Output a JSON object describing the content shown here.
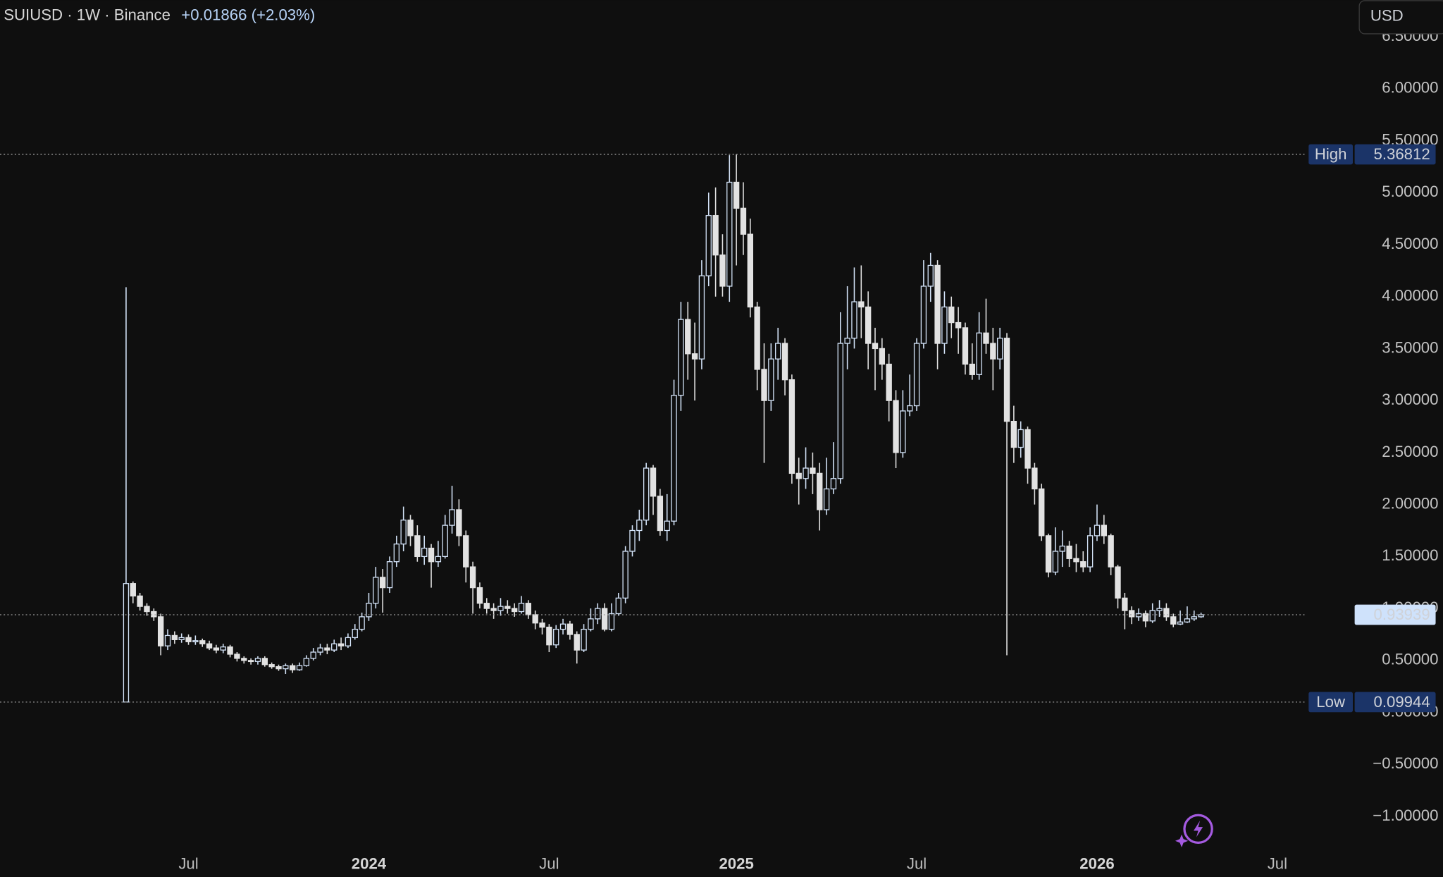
{
  "header": {
    "symbol": "SUIUSD · 1W · Binance",
    "change": "+0.01866 (+2.03%)",
    "currency": "USD"
  },
  "chart_data": {
    "type": "candlestick",
    "categories": [
      null,
      null,
      null,
      null,
      null,
      null,
      null,
      null,
      null,
      "Jul",
      null,
      null,
      null,
      null,
      null,
      null,
      null,
      null,
      null,
      null,
      null,
      null,
      null,
      null,
      null,
      null,
      null,
      null,
      null,
      null,
      null,
      null,
      null,
      null,
      null,
      "2024",
      null,
      null,
      null,
      null,
      null,
      null,
      null,
      null,
      null,
      null,
      null,
      null,
      null,
      null,
      null,
      null,
      null,
      null,
      null,
      null,
      null,
      null,
      null,
      null,
      null,
      "Jul",
      null,
      null,
      null,
      null,
      null,
      null,
      null,
      null,
      null,
      null,
      null,
      null,
      null,
      null,
      null,
      null,
      null,
      null,
      null,
      null,
      null,
      null,
      null,
      null,
      null,
      null,
      "2025",
      null,
      null,
      null,
      null,
      null,
      null,
      null,
      null,
      null,
      null,
      null,
      null,
      null,
      null,
      null,
      null,
      null,
      null,
      null,
      null,
      null,
      null,
      null,
      null,
      null,
      "Jul",
      null,
      null,
      null,
      null,
      null,
      null,
      null,
      null,
      null,
      null,
      null,
      null,
      null,
      null,
      null,
      null,
      null,
      null,
      null,
      null,
      null,
      null,
      null,
      null,
      null,
      "2026",
      null,
      null,
      null,
      null,
      null,
      null,
      null,
      null,
      null,
      null,
      null,
      null,
      null,
      null,
      null,
      null,
      null,
      null,
      null,
      null,
      null,
      null,
      null,
      null,
      null,
      "Jul"
    ],
    "open": [
      0.1,
      1.24,
      1.12,
      1.02,
      0.97,
      0.92,
      0.64,
      0.74,
      0.7,
      0.72,
      0.68,
      0.69,
      0.66,
      0.62,
      0.6,
      0.63,
      0.56,
      0.52,
      0.5,
      0.49,
      0.52,
      0.46,
      0.44,
      0.42,
      0.45,
      0.41,
      0.45,
      0.52,
      0.58,
      0.62,
      0.6,
      0.66,
      0.64,
      0.72,
      0.8,
      0.92,
      1.05,
      1.3,
      1.2,
      1.45,
      1.62,
      1.85,
      1.7,
      1.5,
      1.58,
      1.45,
      1.5,
      1.8,
      1.95,
      1.7,
      1.4,
      1.2,
      1.05,
      1.0,
      0.98,
      1.02,
      1.0,
      0.97,
      1.05,
      0.94,
      0.86,
      0.82,
      0.65,
      0.8,
      0.85,
      0.75,
      0.6,
      0.8,
      0.9,
      1.0,
      0.8,
      0.95,
      1.1,
      1.55,
      1.75,
      1.85,
      2.35,
      2.08,
      1.75,
      1.84,
      3.05,
      3.78,
      3.45,
      3.4,
      4.2,
      4.78,
      4.4,
      4.1,
      5.1,
      4.85,
      4.6,
      3.9,
      3.3,
      3.0,
      3.4,
      3.55,
      3.2,
      2.3,
      2.25,
      2.35,
      2.3,
      1.95,
      2.15,
      2.25,
      3.55,
      3.6,
      3.95,
      3.9,
      3.55,
      3.5,
      3.35,
      3.0,
      2.5,
      2.9,
      2.95,
      3.55,
      4.1,
      4.3,
      3.55,
      3.9,
      3.75,
      3.7,
      3.35,
      3.25,
      3.65,
      3.55,
      3.4,
      3.6,
      2.8,
      2.55,
      2.72,
      2.35,
      2.15,
      1.7,
      1.35,
      1.55,
      1.6,
      1.48,
      1.45,
      1.4,
      1.7,
      1.8,
      1.7,
      1.4,
      1.1,
      0.98,
      0.92,
      0.95,
      0.88,
      0.98,
      1.0,
      0.92,
      0.85,
      0.87,
      0.9,
      0.92,
      null,
      null,
      null,
      null,
      null,
      null,
      null,
      null,
      null,
      null,
      null
    ],
    "high": [
      4.09,
      1.26,
      1.15,
      1.05,
      1.0,
      0.95,
      0.8,
      0.78,
      0.76,
      0.75,
      0.74,
      0.71,
      0.69,
      0.65,
      0.66,
      0.65,
      0.58,
      0.54,
      0.52,
      0.54,
      0.54,
      0.48,
      0.46,
      0.47,
      0.47,
      0.48,
      0.55,
      0.62,
      0.66,
      0.66,
      0.7,
      0.72,
      0.76,
      0.85,
      0.96,
      1.15,
      1.4,
      1.38,
      1.5,
      1.7,
      1.98,
      1.9,
      1.8,
      1.7,
      1.62,
      1.65,
      1.9,
      2.18,
      2.05,
      1.75,
      1.45,
      1.25,
      1.1,
      1.05,
      1.1,
      1.08,
      1.05,
      1.12,
      1.08,
      0.98,
      0.9,
      0.85,
      0.84,
      0.9,
      0.88,
      0.78,
      0.85,
      1.0,
      1.05,
      1.05,
      1.05,
      1.15,
      1.6,
      1.8,
      1.95,
      2.4,
      2.38,
      2.15,
      2.1,
      3.2,
      3.95,
      3.95,
      3.75,
      4.35,
      5.0,
      5.05,
      4.6,
      5.36,
      5.36812,
      5.1,
      4.75,
      3.95,
      3.55,
      3.55,
      3.7,
      3.6,
      3.25,
      2.45,
      2.55,
      2.5,
      2.4,
      2.45,
      2.6,
      3.85,
      4.1,
      4.28,
      4.3,
      4.05,
      3.7,
      3.6,
      3.45,
      3.1,
      3.1,
      3.25,
      3.6,
      4.35,
      4.42,
      4.35,
      4.05,
      4.0,
      3.9,
      3.75,
      3.55,
      3.85,
      3.98,
      3.7,
      3.7,
      3.65,
      2.95,
      2.8,
      2.75,
      2.4,
      2.2,
      1.72,
      1.78,
      1.75,
      1.65,
      1.62,
      1.55,
      1.78,
      2.0,
      1.9,
      1.72,
      1.42,
      1.15,
      1.02,
      1.0,
      0.98,
      1.05,
      1.08,
      1.05,
      0.95,
      0.98,
      1.02,
      0.98,
      0.96,
      null,
      null,
      null,
      null,
      null,
      null,
      null,
      null,
      null,
      null,
      null
    ],
    "low": [
      0.09944,
      1.05,
      0.98,
      0.93,
      0.88,
      0.55,
      0.6,
      0.66,
      0.67,
      0.65,
      0.65,
      0.63,
      0.6,
      0.57,
      0.57,
      0.53,
      0.49,
      0.47,
      0.46,
      0.46,
      0.44,
      0.42,
      0.4,
      0.37,
      0.38,
      0.4,
      0.44,
      0.5,
      0.55,
      0.56,
      0.58,
      0.6,
      0.62,
      0.7,
      0.78,
      0.88,
      1.0,
      0.96,
      1.15,
      1.4,
      1.55,
      1.6,
      1.45,
      1.42,
      1.2,
      1.4,
      1.48,
      1.72,
      1.6,
      1.25,
      0.95,
      1.0,
      0.95,
      0.9,
      0.93,
      0.95,
      0.92,
      0.95,
      0.9,
      0.8,
      0.75,
      0.58,
      0.62,
      0.75,
      0.7,
      0.47,
      0.58,
      0.78,
      0.85,
      0.78,
      0.78,
      0.93,
      1.05,
      1.5,
      1.65,
      1.8,
      1.9,
      1.7,
      1.65,
      1.8,
      2.9,
      3.2,
      3.0,
      3.3,
      4.1,
      4.0,
      4.0,
      3.95,
      4.3,
      4.4,
      3.8,
      3.1,
      2.4,
      2.9,
      3.2,
      3.05,
      2.2,
      2.0,
      2.15,
      2.1,
      1.75,
      1.9,
      2.1,
      2.2,
      3.3,
      3.5,
      3.6,
      3.3,
      3.1,
      3.2,
      2.8,
      2.35,
      2.45,
      2.85,
      2.9,
      3.5,
      3.95,
      3.3,
      3.45,
      3.6,
      3.45,
      3.25,
      3.2,
      3.2,
      3.45,
      3.1,
      3.3,
      0.55,
      2.4,
      2.45,
      2.2,
      2.0,
      1.65,
      1.3,
      1.32,
      1.4,
      1.4,
      1.35,
      1.35,
      1.35,
      1.65,
      1.62,
      1.32,
      1.0,
      0.8,
      0.85,
      0.88,
      0.82,
      0.86,
      0.92,
      0.88,
      0.82,
      0.84,
      0.86,
      0.88,
      0.91,
      null,
      null,
      null,
      null,
      null,
      null,
      null,
      null,
      null,
      null,
      null
    ],
    "close": [
      1.24,
      1.12,
      1.02,
      0.97,
      0.92,
      0.64,
      0.74,
      0.7,
      0.72,
      0.68,
      0.69,
      0.66,
      0.62,
      0.6,
      0.63,
      0.56,
      0.52,
      0.5,
      0.49,
      0.52,
      0.46,
      0.44,
      0.42,
      0.45,
      0.41,
      0.45,
      0.52,
      0.58,
      0.62,
      0.6,
      0.66,
      0.64,
      0.72,
      0.8,
      0.92,
      1.05,
      1.3,
      1.2,
      1.45,
      1.62,
      1.85,
      1.7,
      1.5,
      1.58,
      1.45,
      1.5,
      1.8,
      1.95,
      1.7,
      1.4,
      1.2,
      1.05,
      1.0,
      0.98,
      1.02,
      1.0,
      0.97,
      1.05,
      0.94,
      0.86,
      0.82,
      0.65,
      0.8,
      0.85,
      0.75,
      0.6,
      0.8,
      0.9,
      1.0,
      0.8,
      0.95,
      1.1,
      1.55,
      1.75,
      1.85,
      2.35,
      2.08,
      1.75,
      1.84,
      3.05,
      3.78,
      3.45,
      3.4,
      4.2,
      4.78,
      4.4,
      4.1,
      5.1,
      4.85,
      4.6,
      3.9,
      3.3,
      3.0,
      3.4,
      3.55,
      3.2,
      2.3,
      2.25,
      2.35,
      2.3,
      1.95,
      2.15,
      2.25,
      3.55,
      3.6,
      3.95,
      3.9,
      3.55,
      3.5,
      3.35,
      3.0,
      2.5,
      2.9,
      2.95,
      3.55,
      4.1,
      4.3,
      3.55,
      3.9,
      3.75,
      3.7,
      3.35,
      3.25,
      3.65,
      3.55,
      3.4,
      3.6,
      2.8,
      2.55,
      2.72,
      2.35,
      2.15,
      1.7,
      1.35,
      1.55,
      1.6,
      1.48,
      1.45,
      1.4,
      1.7,
      1.8,
      1.7,
      1.4,
      1.1,
      0.98,
      0.92,
      0.95,
      0.88,
      0.98,
      1.0,
      0.92,
      0.85,
      0.87,
      0.9,
      0.92,
      0.93939,
      null,
      null,
      null,
      null,
      null,
      null,
      null,
      null,
      null,
      null,
      null
    ],
    "ylim": [
      -1.342,
      6.851
    ],
    "yticks": [
      {
        "value": -1,
        "label": "−1.00000"
      },
      {
        "value": -0.5,
        "label": "−0.50000"
      },
      {
        "value": 0,
        "label": "0.00000"
      },
      {
        "value": 0.5,
        "label": "0.50000"
      },
      {
        "value": 1,
        "label": "1.00000"
      },
      {
        "value": 1.5,
        "label": "1.50000"
      },
      {
        "value": 2,
        "label": "2.00000"
      },
      {
        "value": 2.5,
        "label": "2.50000"
      },
      {
        "value": 3,
        "label": "3.00000"
      },
      {
        "value": 3.5,
        "label": "3.50000"
      },
      {
        "value": 4,
        "label": "4.00000"
      },
      {
        "value": 4.5,
        "label": "4.50000"
      },
      {
        "value": 5,
        "label": "5.00000"
      },
      {
        "value": 5.5,
        "label": "5.50000"
      },
      {
        "value": 6,
        "label": "6.00000"
      },
      {
        "value": 6.5,
        "label": "6.50000"
      }
    ],
    "high_marker": {
      "label": "High",
      "value": 5.36812
    },
    "low_marker": {
      "label": "Low",
      "value": 0.09944
    },
    "last_price": 0.93939,
    "up_color": "#d3e3f8",
    "down_color": "#e2e2e2"
  }
}
